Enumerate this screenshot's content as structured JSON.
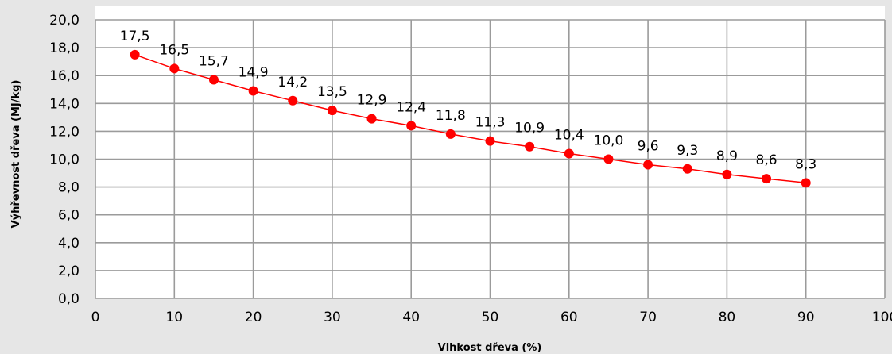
{
  "chart_data": {
    "type": "line",
    "xlabel": "Vlhkost dřeva (%)",
    "ylabel": "Výhřevnost dřeva (MJ/kg)",
    "xlim": [
      0,
      100
    ],
    "ylim": [
      0,
      20
    ],
    "x_ticks": [
      "0",
      "10",
      "20",
      "30",
      "40",
      "50",
      "60",
      "70",
      "80",
      "90",
      "100"
    ],
    "y_ticks": [
      "0,0",
      "2,0",
      "4,0",
      "6,0",
      "8,0",
      "10,0",
      "12,0",
      "14,0",
      "16,0",
      "18,0",
      "20,0"
    ],
    "grid": true,
    "legend": "none",
    "color": "#ff0000",
    "series": [
      {
        "x": [
          5,
          10,
          15,
          20,
          25,
          30,
          35,
          40,
          45,
          50,
          55,
          60,
          65,
          70,
          75,
          80,
          85,
          90
        ],
        "values": [
          17.5,
          16.5,
          15.7,
          14.9,
          14.2,
          13.5,
          12.9,
          12.4,
          11.8,
          11.3,
          10.9,
          10.4,
          10.0,
          9.6,
          9.3,
          8.9,
          8.6,
          8.3
        ],
        "labels": [
          "17,5",
          "16,5",
          "15,7",
          "14,9",
          "14,2",
          "13,5",
          "12,9",
          "12,4",
          "11,8",
          "11,3",
          "10,9",
          "10,4",
          "10,0",
          "9,6",
          "9,3",
          "8,9",
          "8,6",
          "8,3"
        ]
      }
    ]
  }
}
